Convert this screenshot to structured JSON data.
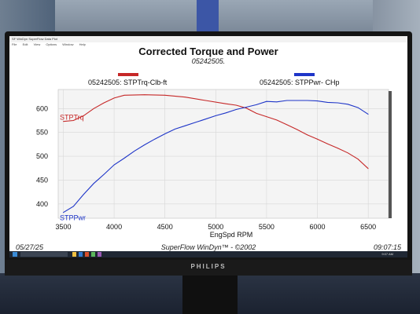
{
  "window": {
    "title": "SF WinDyn SuperFlow Data Plot",
    "menu": [
      "File",
      "Edit",
      "View",
      "Options",
      "Window",
      "Help"
    ]
  },
  "chart_data": {
    "type": "line",
    "title": "Corrected Torque and Power",
    "subtitle": "05242505.",
    "xlabel": "EngSpd  RPM",
    "x_ticks": [
      3500,
      4000,
      4500,
      5000,
      5500,
      6000,
      6500
    ],
    "y_ticks": [
      400,
      450,
      500,
      550,
      600
    ],
    "xlim": [
      3450,
      6700
    ],
    "ylim": [
      370,
      640
    ],
    "grid": true,
    "series": [
      {
        "name": "05242505: STPTrq-Clb-ft",
        "inline_label": "STPTrq",
        "color": "#c62828",
        "x": [
          3500,
          3600,
          3700,
          3800,
          3900,
          4000,
          4100,
          4300,
          4500,
          4700,
          4900,
          5100,
          5200,
          5300,
          5400,
          5500,
          5600,
          5700,
          5800,
          5900,
          6000,
          6100,
          6200,
          6300,
          6400,
          6500
        ],
        "values": [
          573,
          575,
          585,
          600,
          612,
          622,
          628,
          629,
          628,
          624,
          617,
          610,
          607,
          601,
          590,
          583,
          576,
          566,
          556,
          545,
          536,
          526,
          517,
          507,
          494,
          474
        ]
      },
      {
        "name": "05242505: STPPwr- CHp",
        "inline_label": "STPPwr",
        "color": "#1e35c8",
        "x": [
          3500,
          3600,
          3700,
          3800,
          3900,
          4000,
          4100,
          4200,
          4300,
          4400,
          4500,
          4600,
          4700,
          4800,
          4900,
          5000,
          5100,
          5200,
          5300,
          5400,
          5500,
          5600,
          5700,
          5800,
          5900,
          6000,
          6100,
          6200,
          6300,
          6400,
          6500
        ],
        "values": [
          382,
          395,
          420,
          443,
          462,
          482,
          496,
          511,
          524,
          536,
          547,
          557,
          564,
          571,
          578,
          585,
          591,
          598,
          603,
          608,
          615,
          614,
          617,
          617,
          617,
          616,
          613,
          612,
          609,
          602,
          588
        ]
      }
    ]
  },
  "footer": {
    "date": "05/27/25",
    "brand": "SuperFlow WinDyn™ - ©2002",
    "time": "09:07:15"
  },
  "taskbar": {
    "clock": "9:07 AM"
  },
  "monitor": {
    "brand": "PHILIPS"
  }
}
